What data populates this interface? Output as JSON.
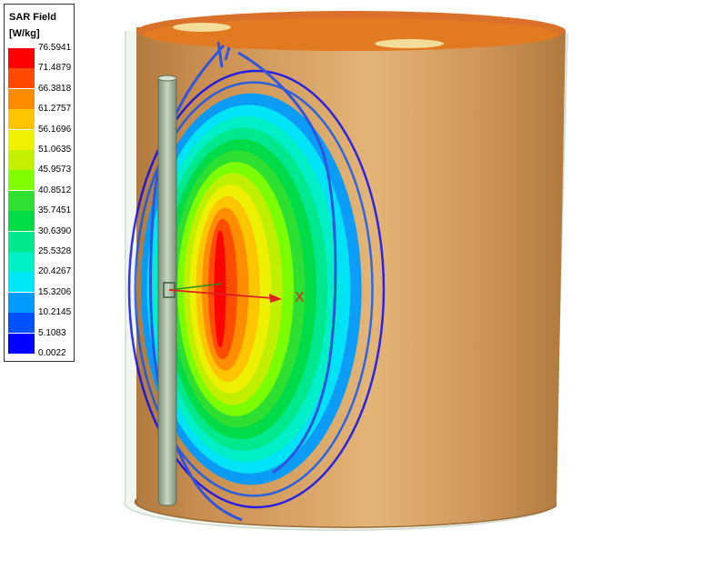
{
  "legend": {
    "title": "SAR Field",
    "unit": "[W/kg]",
    "entries": [
      {
        "value": "76.5941",
        "color": "#ff0000"
      },
      {
        "value": "71.4879",
        "color": "#ff4a00"
      },
      {
        "value": "66.3818",
        "color": "#ff8c00"
      },
      {
        "value": "61.2757",
        "color": "#ffc400"
      },
      {
        "value": "56.1696",
        "color": "#f0f000"
      },
      {
        "value": "51.0635",
        "color": "#c4f000"
      },
      {
        "value": "45.9573",
        "color": "#80ff00"
      },
      {
        "value": "40.8512",
        "color": "#30e030"
      },
      {
        "value": "35.7451",
        "color": "#00dc46"
      },
      {
        "value": "30.6390",
        "color": "#00e88c"
      },
      {
        "value": "25.5328",
        "color": "#00f0c4"
      },
      {
        "value": "20.4267",
        "color": "#00e6f5"
      },
      {
        "value": "15.3206",
        "color": "#009cff"
      },
      {
        "value": "10.2145",
        "color": "#0052ff"
      },
      {
        "value": "5.1083",
        "color": "#0000ff"
      },
      {
        "value": "0.0022",
        "color": ""
      }
    ]
  },
  "axis": {
    "label": "X",
    "color": "#e02020"
  },
  "colors": {
    "phantom": "#c98d4f",
    "phantom_top": "#e07820"
  }
}
